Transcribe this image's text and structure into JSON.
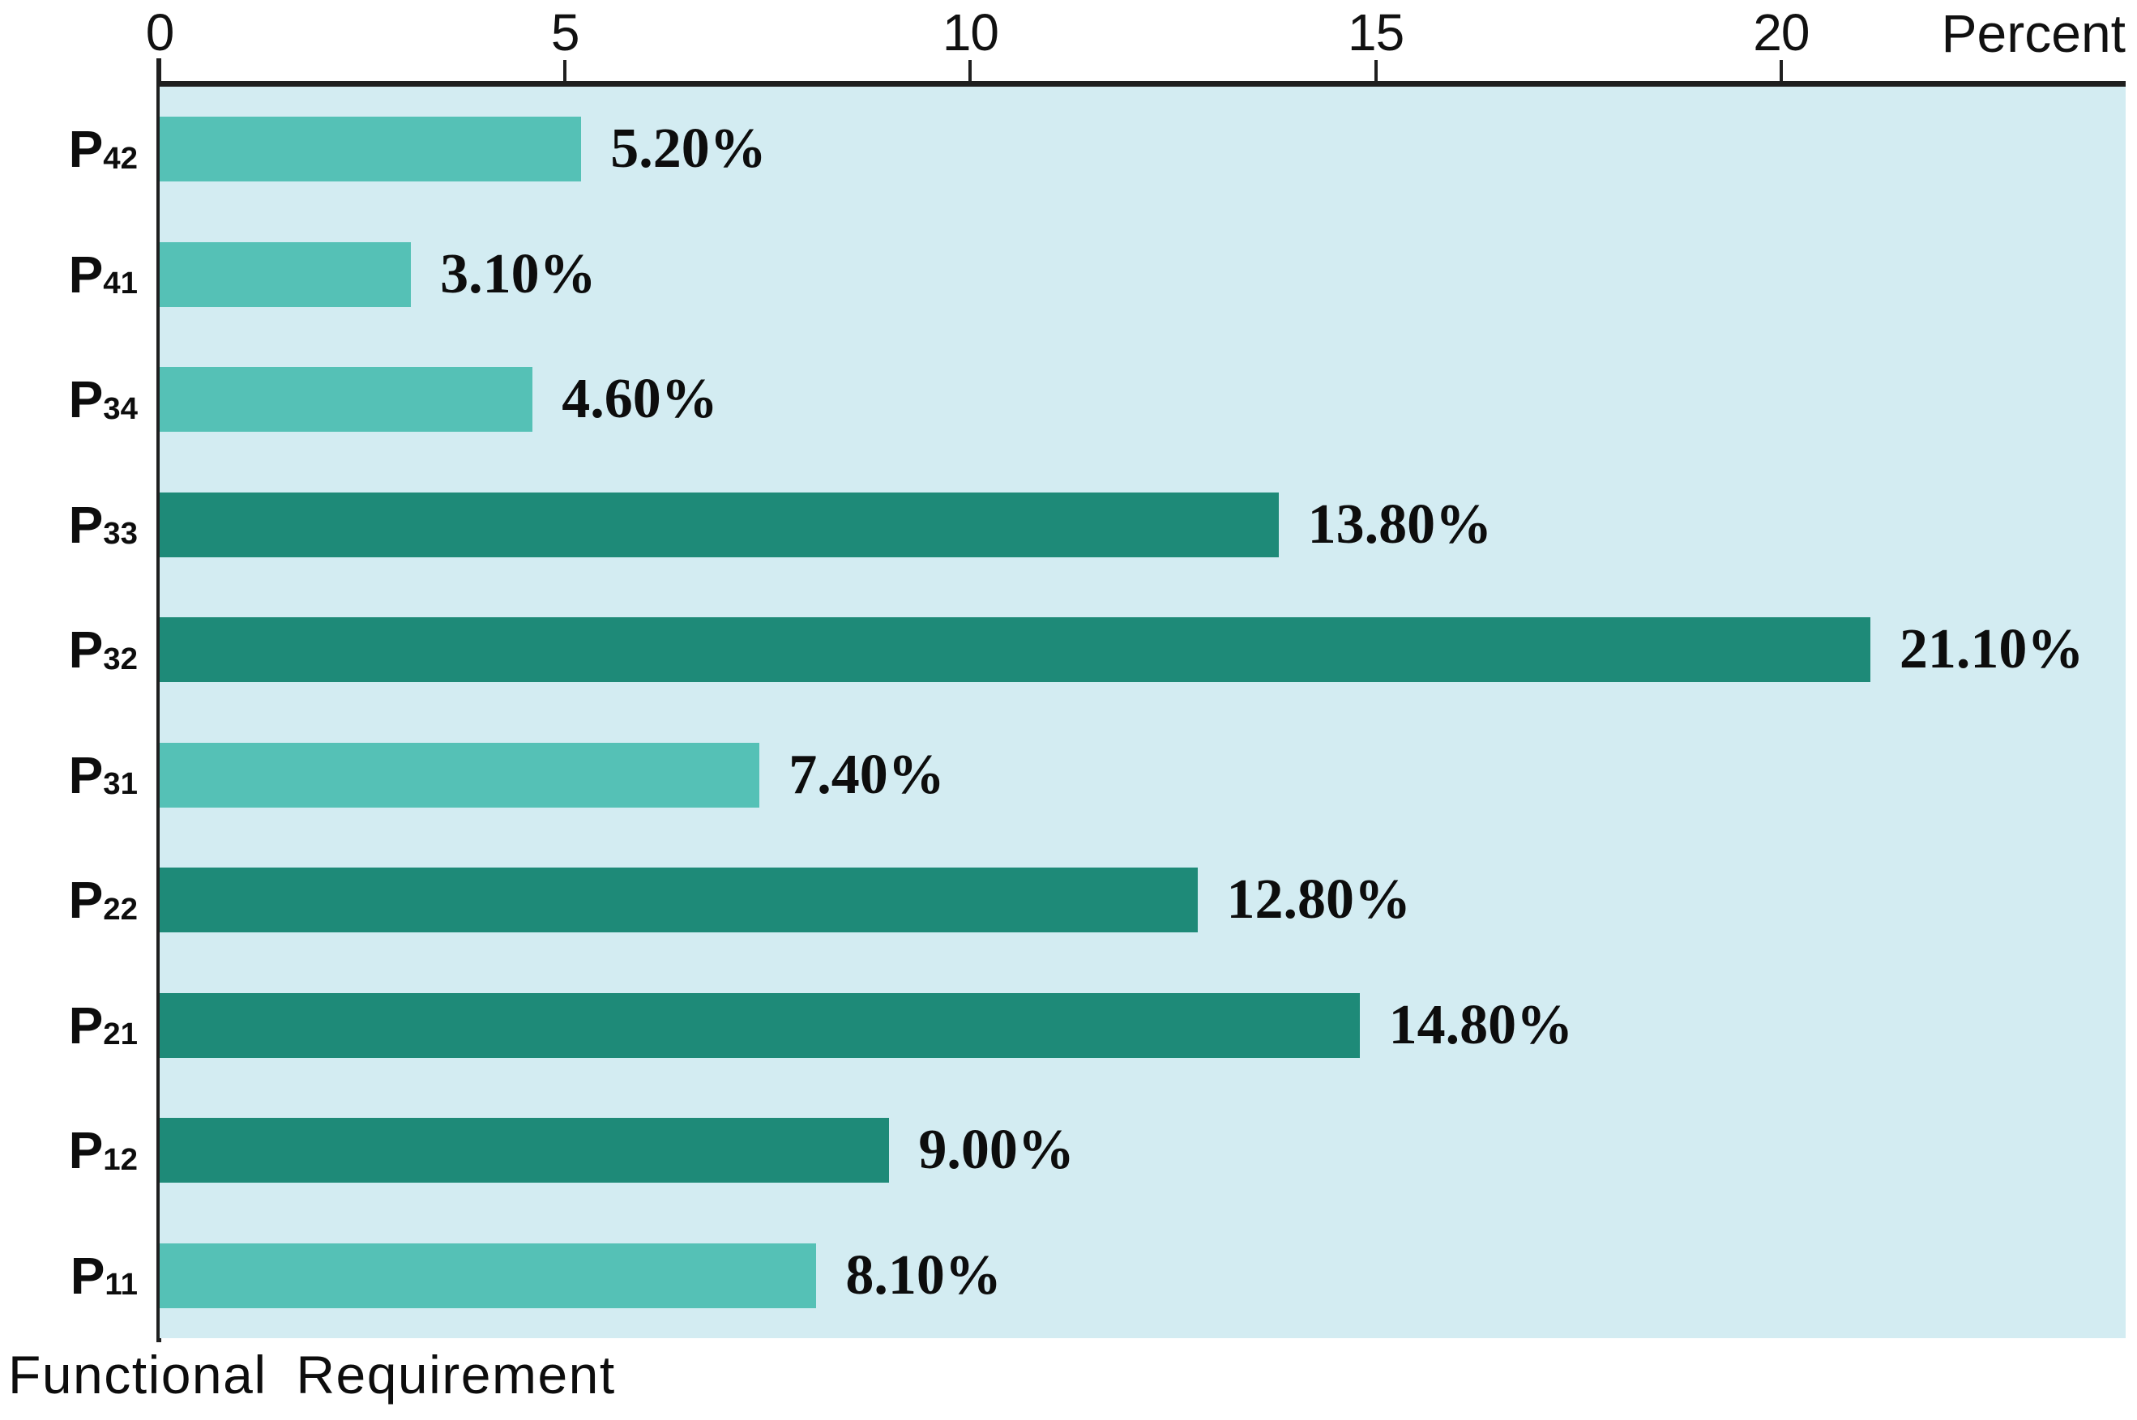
{
  "chart_data": {
    "type": "bar",
    "orientation": "horizontal",
    "grid": "off",
    "legend": "none",
    "x_axis": {
      "title": "Percent",
      "position": "top",
      "ticks": [
        "0",
        "5",
        "10",
        "15",
        "20"
      ],
      "tick_values": [
        0,
        5,
        10,
        15,
        20
      ],
      "range": [
        0,
        24.25
      ]
    },
    "y_axis_label": "Functional Requirement",
    "categories": [
      {
        "base": "P",
        "sub": "42"
      },
      {
        "base": "P",
        "sub": "41"
      },
      {
        "base": "P",
        "sub": "34"
      },
      {
        "base": "P",
        "sub": "33"
      },
      {
        "base": "P",
        "sub": "32"
      },
      {
        "base": "P",
        "sub": "31"
      },
      {
        "base": "P",
        "sub": "22"
      },
      {
        "base": "P",
        "sub": "21"
      },
      {
        "base": "P",
        "sub": "12"
      },
      {
        "base": "P",
        "sub": "11"
      }
    ],
    "values": [
      5.2,
      3.1,
      4.6,
      13.8,
      21.1,
      7.4,
      12.8,
      14.8,
      9.0,
      8.1
    ],
    "value_labels": [
      "5.20%",
      "3.10%",
      "4.60%",
      "13.80%",
      "21.10%",
      "7.40%",
      "12.80%",
      "14.80%",
      "9.00%",
      "8.10%"
    ],
    "bar_palette": [
      "light",
      "light",
      "light",
      "dark",
      "dark",
      "light",
      "dark",
      "dark",
      "dark",
      "light"
    ],
    "colors": {
      "light": "#55c1b6",
      "dark": "#1e8a78",
      "plot_bg": "#d3ecf2",
      "axis_line": "#1f1f1f",
      "text": "#111111"
    }
  }
}
